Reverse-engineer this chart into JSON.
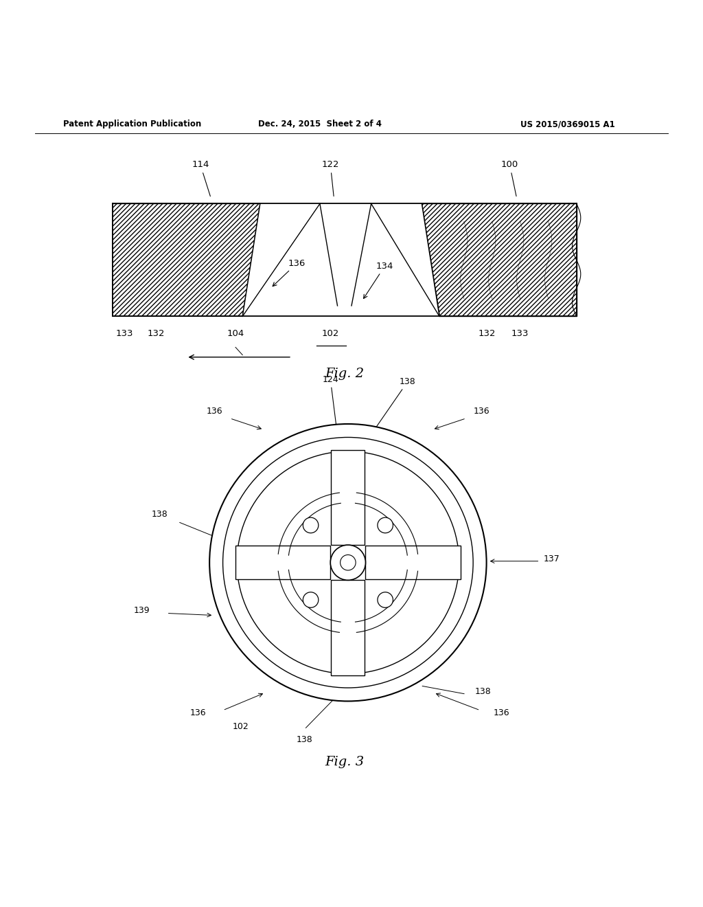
{
  "bg_color": "#ffffff",
  "header_left": "Patent Application Publication",
  "header_mid": "Dec. 24, 2015  Sheet 2 of 4",
  "header_right": "US 2015/0369015 A1",
  "fig2_caption": "Fig. 2",
  "fig3_caption": "Fig. 3"
}
